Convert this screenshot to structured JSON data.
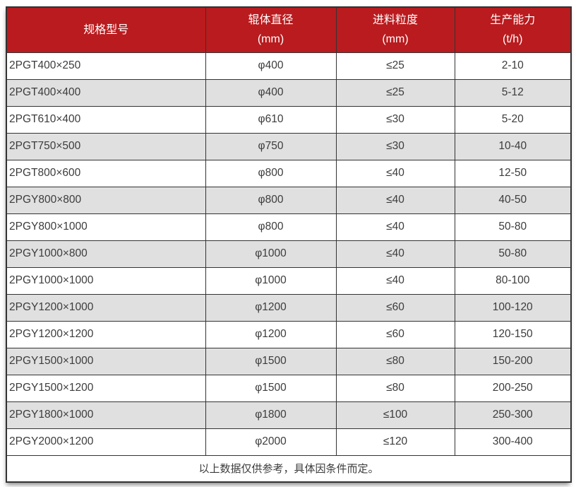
{
  "colors": {
    "header_bg": "#B91B1E",
    "header_text": "#FFFFFF",
    "row_bg": "#FFFFFF",
    "row_alt_bg": "#E0E0E0",
    "border": "#333333",
    "text": "#3C3C3C"
  },
  "table": {
    "columns": [
      {
        "line1": "规格型号",
        "line2": ""
      },
      {
        "line1": "辊体直径",
        "line2": "(mm)"
      },
      {
        "line1": "进料粒度",
        "line2": "(mm)"
      },
      {
        "line1": "生产能力",
        "line2": "(t/h)"
      }
    ],
    "rows": [
      [
        "2PGT400×250",
        "φ400",
        "≤25",
        "2-10"
      ],
      [
        "2PGT400×400",
        "φ400",
        "≤25",
        "5-12"
      ],
      [
        "2PGT610×400",
        "φ610",
        "≤30",
        "5-20"
      ],
      [
        "2PGT750×500",
        "φ750",
        "≤30",
        "10-40"
      ],
      [
        "2PGT800×600",
        "φ800",
        "≤40",
        "12-50"
      ],
      [
        "2PGY800×800",
        "φ800",
        "≤40",
        "40-50"
      ],
      [
        "2PGY800×1000",
        "φ800",
        "≤40",
        "50-80"
      ],
      [
        "2PGY1000×800",
        "φ1000",
        "≤40",
        "50-80"
      ],
      [
        "2PGY1000×1000",
        "φ1000",
        "≤40",
        "80-100"
      ],
      [
        "2PGY1200×1000",
        "φ1200",
        "≤60",
        "100-120"
      ],
      [
        "2PGY1200×1200",
        "φ1200",
        "≤60",
        "120-150"
      ],
      [
        "2PGY1500×1000",
        "φ1500",
        "≤80",
        "150-200"
      ],
      [
        "2PGY1500×1200",
        "φ1500",
        "≤80",
        "200-250"
      ],
      [
        "2PGY1800×1000",
        "φ1800",
        "≤100",
        "250-300"
      ],
      [
        "2PGY2000×1200",
        "φ2000",
        "≤120",
        "300-400"
      ]
    ],
    "footnote": "以上数据仅供参考，具体因条件而定。"
  }
}
